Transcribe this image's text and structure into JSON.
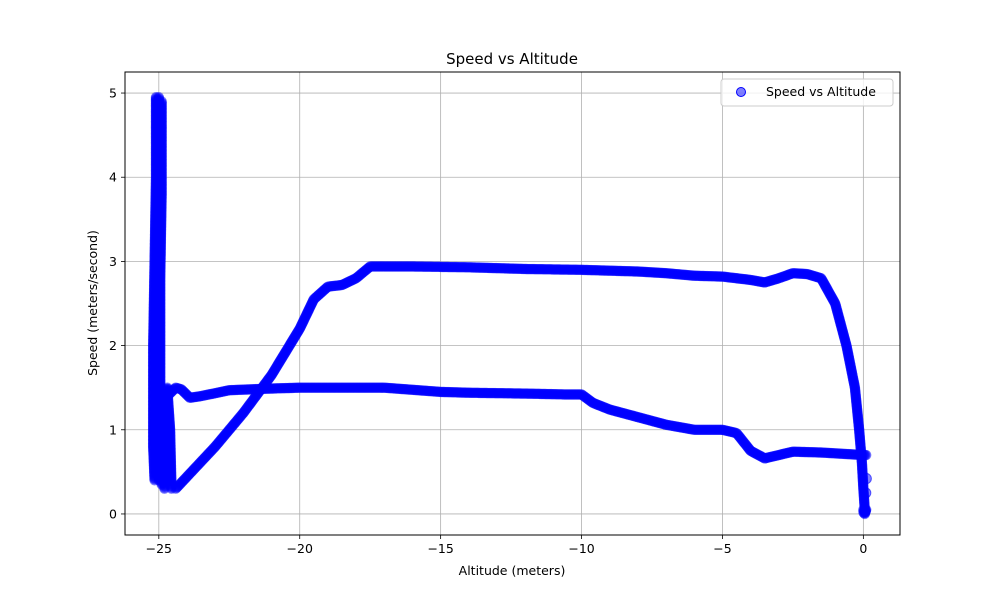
{
  "chart_data": {
    "type": "scatter",
    "title": "Speed vs Altitude",
    "xlabel": "Altitude (meters)",
    "ylabel": "Speed (meters/second)",
    "xlim": [
      -26.2,
      1.3
    ],
    "ylim": [
      -0.25,
      5.25
    ],
    "x_ticks": [
      -25,
      -20,
      -15,
      -10,
      -5,
      0
    ],
    "x_tick_labels": [
      "−25",
      "−20",
      "−15",
      "−10",
      "−5",
      "0"
    ],
    "y_ticks": [
      0,
      1,
      2,
      3,
      4,
      5
    ],
    "y_tick_labels": [
      "0",
      "1",
      "2",
      "3",
      "4",
      "5"
    ],
    "grid": true,
    "legend_position": "top-right",
    "marker_color": "#0000ff",
    "marker_alpha": 0.5,
    "series": [
      {
        "name": "Speed vs Altitude",
        "segments": [
          [
            [
              -25.0,
              4.95
            ],
            [
              -25.0,
              4.6
            ],
            [
              -25.0,
              4.0
            ],
            [
              -25.0,
              3.2
            ],
            [
              -25.0,
              2.4
            ],
            [
              -25.0,
              1.6
            ],
            [
              -25.0,
              1.0
            ],
            [
              -25.0,
              0.6
            ],
            [
              -25.0,
              0.4
            ]
          ],
          [
            [
              -25.1,
              4.95
            ],
            [
              -25.1,
              4.0
            ],
            [
              -25.15,
              3.0
            ],
            [
              -25.2,
              2.0
            ],
            [
              -25.2,
              1.2
            ],
            [
              -25.2,
              0.8
            ],
            [
              -25.15,
              0.4
            ]
          ],
          [
            [
              -24.9,
              4.9
            ],
            [
              -24.9,
              3.8
            ],
            [
              -24.95,
              2.8
            ],
            [
              -24.95,
              1.8
            ],
            [
              -24.95,
              1.0
            ],
            [
              -24.9,
              0.35
            ]
          ],
          [
            [
              -24.8,
              0.3
            ],
            [
              -24.7,
              1.5
            ],
            [
              -24.6,
              1.0
            ],
            [
              -24.55,
              0.3
            ]
          ],
          [
            [
              -24.7,
              1.4
            ],
            [
              -24.4,
              1.5
            ],
            [
              -24.2,
              1.48
            ],
            [
              -23.9,
              1.38
            ],
            [
              -23.5,
              1.4
            ],
            [
              -22.5,
              1.47
            ],
            [
              -21,
              1.49
            ],
            [
              -20,
              1.5
            ],
            [
              -18,
              1.5
            ],
            [
              -17,
              1.5
            ],
            [
              -15,
              1.45
            ],
            [
              -14,
              1.44
            ],
            [
              -12,
              1.43
            ],
            [
              -10.6,
              1.42
            ],
            [
              -10,
              1.42
            ],
            [
              -9.6,
              1.32
            ],
            [
              -9,
              1.24
            ],
            [
              -8,
              1.15
            ],
            [
              -7,
              1.06
            ],
            [
              -6,
              1.0
            ],
            [
              -5,
              1.0
            ],
            [
              -4.5,
              0.96
            ],
            [
              -4,
              0.75
            ],
            [
              -3.5,
              0.66
            ],
            [
              -3,
              0.7
            ],
            [
              -2.5,
              0.74
            ],
            [
              -1.5,
              0.73
            ],
            [
              -0.5,
              0.71
            ],
            [
              0.0,
              0.7
            ],
            [
              0.1,
              0.7
            ]
          ],
          [
            [
              -24.4,
              0.3
            ],
            [
              -23,
              0.8
            ],
            [
              -22,
              1.2
            ],
            [
              -21,
              1.65
            ],
            [
              -20,
              2.2
            ],
            [
              -19.5,
              2.55
            ],
            [
              -19,
              2.7
            ],
            [
              -18.5,
              2.72
            ],
            [
              -18,
              2.8
            ],
            [
              -17.5,
              2.94
            ],
            [
              -16,
              2.94
            ],
            [
              -14,
              2.93
            ],
            [
              -12,
              2.91
            ],
            [
              -10,
              2.9
            ],
            [
              -8,
              2.88
            ],
            [
              -7,
              2.86
            ],
            [
              -6,
              2.83
            ],
            [
              -5,
              2.82
            ],
            [
              -4,
              2.78
            ],
            [
              -3.5,
              2.75
            ],
            [
              -3,
              2.8
            ],
            [
              -2.5,
              2.86
            ],
            [
              -2,
              2.85
            ],
            [
              -1.5,
              2.8
            ],
            [
              -1,
              2.5
            ],
            [
              -0.6,
              2.0
            ],
            [
              -0.3,
              1.5
            ],
            [
              -0.15,
              1.0
            ],
            [
              -0.05,
              0.6
            ],
            [
              0.0,
              0.3
            ],
            [
              0.05,
              0.05
            ]
          ],
          [
            [
              0.0,
              0.05
            ],
            [
              0.05,
              0.02
            ],
            [
              0.1,
              0.05
            ],
            [
              0.05,
              0.0
            ],
            [
              0.0,
              0.02
            ]
          ]
        ],
        "sparse_points": [
          [
            0.1,
            0.42
          ],
          [
            0.08,
            0.25
          ]
        ]
      }
    ]
  }
}
